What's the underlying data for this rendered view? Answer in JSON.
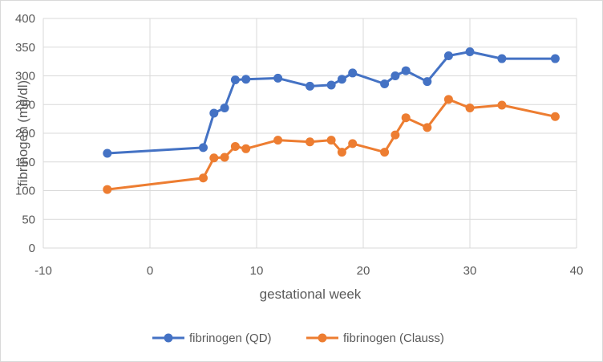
{
  "chart_data": {
    "type": "line",
    "title": "",
    "xlabel": "gestational week",
    "ylabel": "fibrinogen (mg/dl)",
    "xlim": [
      -10,
      40
    ],
    "ylim": [
      0,
      400
    ],
    "xticks": [
      -10,
      0,
      10,
      20,
      30,
      40
    ],
    "yticks": [
      0,
      50,
      100,
      150,
      200,
      250,
      300,
      350,
      400
    ],
    "grid": true,
    "legend_position": "bottom",
    "series": [
      {
        "name": "fibrinogen (QD)",
        "color": "#4472C4",
        "points": [
          [
            -4,
            165
          ],
          [
            5,
            175
          ],
          [
            6,
            235
          ],
          [
            7,
            244
          ],
          [
            8,
            293
          ],
          [
            9,
            294
          ],
          [
            12,
            296
          ],
          [
            15,
            282
          ],
          [
            17,
            284
          ],
          [
            18,
            294
          ],
          [
            19,
            305
          ],
          [
            22,
            286
          ],
          [
            23,
            300
          ],
          [
            24,
            309
          ],
          [
            26,
            290
          ],
          [
            28,
            335
          ],
          [
            30,
            342
          ],
          [
            33,
            330
          ],
          [
            38,
            330
          ]
        ]
      },
      {
        "name": "fibrinogen (Clauss)",
        "color": "#ED7D31",
        "points": [
          [
            -4,
            102
          ],
          [
            5,
            122
          ],
          [
            6,
            157
          ],
          [
            7,
            158
          ],
          [
            8,
            177
          ],
          [
            9,
            173
          ],
          [
            12,
            188
          ],
          [
            15,
            185
          ],
          [
            17,
            188
          ],
          [
            18,
            167
          ],
          [
            19,
            182
          ],
          [
            22,
            167
          ],
          [
            23,
            197
          ],
          [
            24,
            227
          ],
          [
            26,
            210
          ],
          [
            28,
            259
          ],
          [
            30,
            244
          ],
          [
            33,
            249
          ],
          [
            38,
            229
          ]
        ]
      }
    ]
  }
}
